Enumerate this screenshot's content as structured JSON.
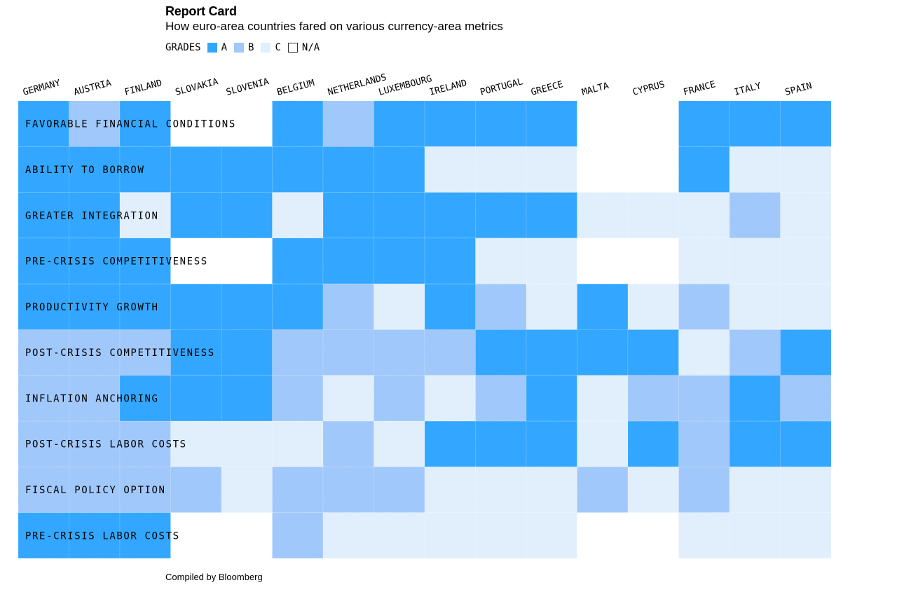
{
  "header": {
    "title": "Report Card",
    "subtitle": "How euro-area countries fared on various currency-area metrics"
  },
  "legend": {
    "label": "GRADES",
    "items": [
      {
        "grade": "A",
        "label": "A",
        "color": "#33a7ff"
      },
      {
        "grade": "B",
        "label": "B",
        "color": "#a1c8fb"
      },
      {
        "grade": "C",
        "label": "C",
        "color": "#e1effd"
      },
      {
        "grade": "N/A",
        "label": "N/A",
        "color": "#ffffff"
      }
    ]
  },
  "footer": {
    "source": "Compiled by Bloomberg"
  },
  "chart_data": {
    "type": "heatmap",
    "colors": {
      "A": "#33a7ff",
      "B": "#a1c8fb",
      "C": "#e1effd",
      "N/A": "#ffffff"
    },
    "columns": [
      "GERMANY",
      "AUSTRIA",
      "FINLAND",
      "SLOVAKIA",
      "SLOVENIA",
      "BELGIUM",
      "NETHERLANDS",
      "LUXEMBOURG",
      "IRELAND",
      "PORTUGAL",
      "GREECE",
      "MALTA",
      "CYPRUS",
      "FRANCE",
      "ITALY",
      "SPAIN"
    ],
    "rows": [
      {
        "label": "FAVORABLE FINANCIAL CONDITIONS",
        "grades": [
          "A",
          "B",
          "A",
          "N/A",
          "N/A",
          "A",
          "B",
          "A",
          "A",
          "A",
          "A",
          "N/A",
          "N/A",
          "A",
          "A",
          "A"
        ]
      },
      {
        "label": "ABILITY TO BORROW",
        "grades": [
          "A",
          "A",
          "A",
          "A",
          "A",
          "A",
          "A",
          "A",
          "C",
          "C",
          "C",
          "N/A",
          "N/A",
          "A",
          "C",
          "C"
        ]
      },
      {
        "label": "GREATER INTEGRATION",
        "grades": [
          "A",
          "A",
          "C",
          "A",
          "A",
          "C",
          "A",
          "A",
          "A",
          "A",
          "A",
          "C",
          "C",
          "C",
          "B",
          "C"
        ]
      },
      {
        "label": "PRE-CRISIS COMPETITIVENESS",
        "grades": [
          "A",
          "A",
          "A",
          "N/A",
          "N/A",
          "A",
          "A",
          "A",
          "A",
          "C",
          "C",
          "N/A",
          "N/A",
          "C",
          "C",
          "C"
        ]
      },
      {
        "label": "PRODUCTIVITY GROWTH",
        "grades": [
          "A",
          "A",
          "A",
          "A",
          "A",
          "A",
          "B",
          "C",
          "A",
          "B",
          "C",
          "A",
          "C",
          "B",
          "C",
          "C"
        ]
      },
      {
        "label": "POST-CRISIS COMPETITIVENESS",
        "grades": [
          "B",
          "B",
          "B",
          "A",
          "A",
          "B",
          "B",
          "B",
          "B",
          "A",
          "A",
          "A",
          "A",
          "C",
          "B",
          "A"
        ]
      },
      {
        "label": "INFLATION ANCHORING",
        "grades": [
          "B",
          "B",
          "A",
          "A",
          "A",
          "B",
          "C",
          "B",
          "C",
          "B",
          "A",
          "C",
          "B",
          "B",
          "A",
          "B"
        ]
      },
      {
        "label": "POST-CRISIS LABOR COSTS",
        "grades": [
          "B",
          "B",
          "B",
          "C",
          "C",
          "C",
          "B",
          "C",
          "A",
          "A",
          "A",
          "C",
          "A",
          "B",
          "A",
          "A"
        ]
      },
      {
        "label": "FISCAL POLICY OPTION",
        "grades": [
          "B",
          "B",
          "B",
          "B",
          "C",
          "B",
          "B",
          "B",
          "C",
          "C",
          "C",
          "B",
          "C",
          "B",
          "C",
          "C"
        ]
      },
      {
        "label": "PRE-CRISIS LABOR COSTS",
        "grades": [
          "A",
          "A",
          "A",
          "N/A",
          "N/A",
          "B",
          "C",
          "C",
          "C",
          "C",
          "C",
          "N/A",
          "N/A",
          "C",
          "C",
          "C"
        ]
      }
    ]
  }
}
